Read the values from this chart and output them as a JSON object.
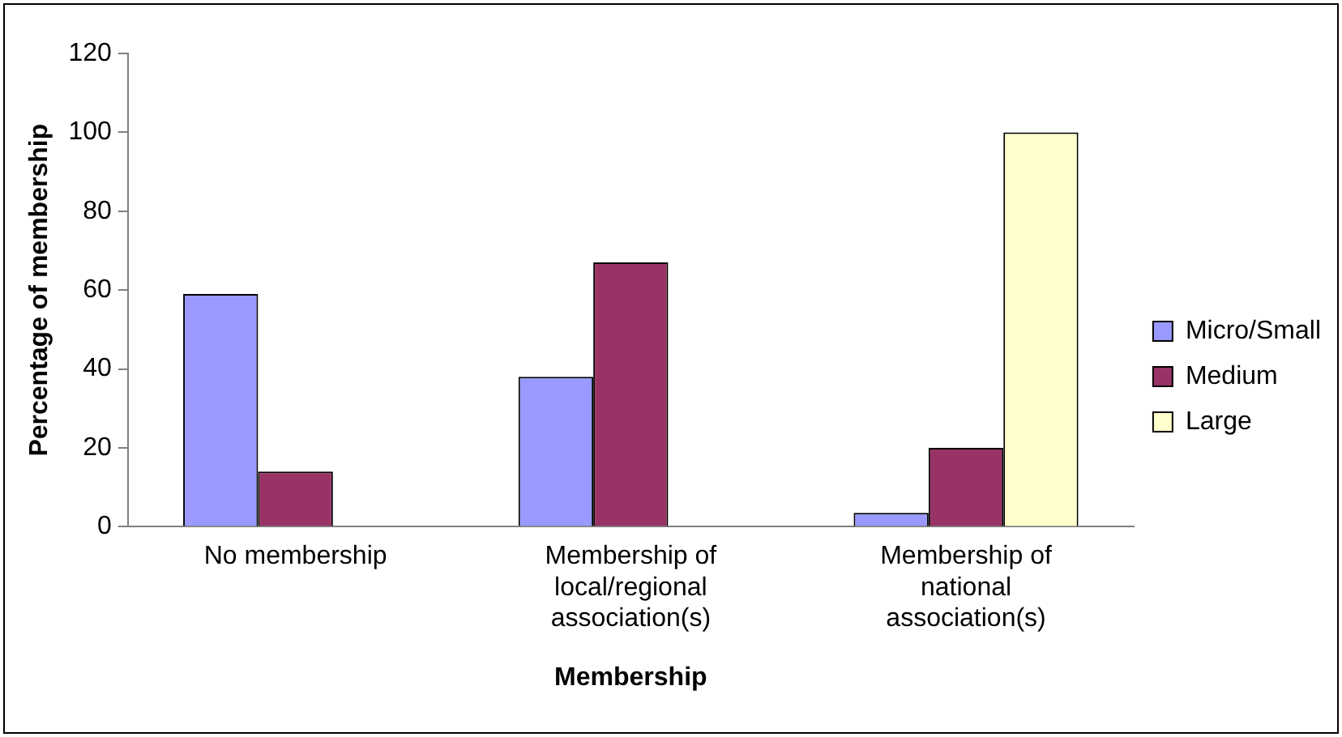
{
  "chart_data": {
    "type": "bar",
    "xlabel": "Membership",
    "ylabel": "Percentage of membership",
    "categories": [
      "No membership",
      "Membership of local/regional association(s)",
      "Membership of national association(s)"
    ],
    "series": [
      {
        "name": "Micro/Small",
        "color": "#9999ff",
        "values": [
          59,
          38,
          3.5
        ]
      },
      {
        "name": "Medium",
        "color": "#993366",
        "values": [
          14,
          67,
          20
        ]
      },
      {
        "name": "Large",
        "color": "#ffffcc",
        "values": [
          0,
          0,
          100
        ]
      }
    ],
    "ylim": [
      0,
      120
    ],
    "yticks": [
      0,
      20,
      40,
      60,
      80,
      100,
      120
    ],
    "grid": false,
    "legend": "right"
  }
}
